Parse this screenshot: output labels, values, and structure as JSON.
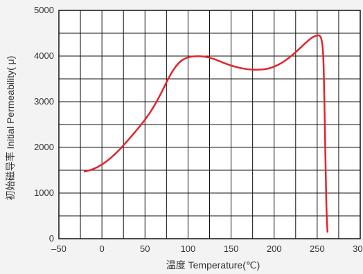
{
  "chart_data": {
    "type": "line",
    "title": "",
    "xlabel": "温度  Temperature(℃)",
    "ylabel": "初始磁导率   Initial Permeability( μ)",
    "xlim": [
      -50,
      300
    ],
    "ylim": [
      0,
      5000
    ],
    "x_ticks": [
      -50,
      0,
      50,
      100,
      150,
      200,
      250,
      300
    ],
    "x_tick_labels": [
      "–50",
      "0",
      "50",
      "100",
      "150",
      "200",
      "250",
      "300"
    ],
    "y_ticks": [
      0,
      1000,
      2000,
      3000,
      4000,
      5000
    ],
    "y_tick_labels": [
      "0",
      "1000",
      "2000",
      "3000",
      "4000",
      "5000"
    ],
    "grid": true,
    "x_minor_step": 25,
    "y_minor_step": 500,
    "colors": {
      "background": "#f3f3f3",
      "plot_background": "#ffffff",
      "grid": "#111111",
      "frame": "#111111",
      "series": "#e3242b",
      "text": "#333333"
    },
    "series": [
      {
        "x": [
          -20,
          -10,
          0,
          10,
          20,
          30,
          40,
          50,
          60,
          70,
          80,
          90,
          100,
          110,
          120,
          130,
          140,
          150,
          160,
          170,
          180,
          190,
          200,
          210,
          220,
          230,
          240,
          245,
          250,
          252,
          255,
          257,
          258,
          259,
          260,
          261,
          262
        ],
        "y": [
          1470,
          1520,
          1620,
          1760,
          1940,
          2150,
          2370,
          2600,
          2880,
          3230,
          3620,
          3880,
          3980,
          4000,
          3990,
          3940,
          3860,
          3790,
          3740,
          3705,
          3700,
          3710,
          3760,
          3860,
          4000,
          4170,
          4350,
          4420,
          4450,
          4460,
          4400,
          4100,
          3400,
          2400,
          1300,
          500,
          150
        ]
      }
    ]
  }
}
